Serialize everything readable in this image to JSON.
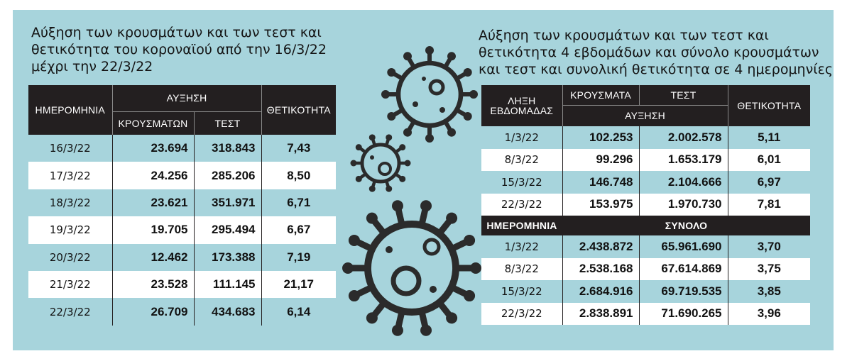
{
  "left": {
    "title_lines": [
      "Αύξηση των κρουσμάτων και των τεστ και",
      "θετικότητα του κοροναϊού από την 16/3/22",
      "μέχρι την 22/3/22"
    ],
    "headers": {
      "date": "ΗΜΕΡΟΜΗΝΙΑ",
      "increase": "ΑΥΞΗΣΗ",
      "cases": "ΚΡΟΥΣΜΑΤΩΝ",
      "tests": "ΤΕΣΤ",
      "positivity": "ΘΕΤΙΚΟΤΗΤΑ"
    },
    "rows": [
      {
        "date": "16/3/22",
        "cases": "23.694",
        "tests": "318.843",
        "positivity": "7,43"
      },
      {
        "date": "17/3/22",
        "cases": "24.256",
        "tests": "285.206",
        "positivity": "8,50"
      },
      {
        "date": "18/3/22",
        "cases": "23.621",
        "tests": "351.971",
        "positivity": "6,71"
      },
      {
        "date": "19/3/22",
        "cases": "19.705",
        "tests": "295.494",
        "positivity": "6,67"
      },
      {
        "date": "20/3/22",
        "cases": "12.462",
        "tests": "173.388",
        "positivity": "7,19"
      },
      {
        "date": "21/3/22",
        "cases": "23.528",
        "tests": "111.145",
        "positivity": "21,17"
      },
      {
        "date": "22/3/22",
        "cases": "26.709",
        "tests": "434.683",
        "positivity": "6,14"
      }
    ]
  },
  "right": {
    "title_lines": [
      "Αύξηση των κρουσμάτων και των τεστ και",
      "θετικότητα 4 εβδομάδων και σύνολο κρουσμάτων",
      "και τεστ και συνολική θετικότητα σε 4 ημερομηνίες"
    ],
    "headers": {
      "week_end_1": "ΛΗΞΗ",
      "week_end_2": "ΕΒΔΟΜΑΔΑΣ",
      "cases": "ΚΡΟΥΣΜΑΤΑ",
      "tests": "ΤΕΣΤ",
      "increase": "ΑΥΞΗΣΗ",
      "positivity": "ΘΕΤΙΚΟΤΗΤΑ",
      "date": "ΗΜΕΡΟΜΗΝΙΑ",
      "total": "ΣΥΝΟΛΟ"
    },
    "weekly": [
      {
        "date": "1/3/22",
        "cases": "102.253",
        "tests": "2.002.578",
        "positivity": "5,11"
      },
      {
        "date": "8/3/22",
        "cases": "99.296",
        "tests": "1.653.179",
        "positivity": "6,01"
      },
      {
        "date": "15/3/22",
        "cases": "146.748",
        "tests": "2.104.666",
        "positivity": "6,97"
      },
      {
        "date": "22/3/22",
        "cases": "153.975",
        "tests": "1.970.730",
        "positivity": "7,81"
      }
    ],
    "totals": [
      {
        "date": "1/3/22",
        "cases": "2.438.872",
        "tests": "65.961.690",
        "positivity": "3,70"
      },
      {
        "date": "8/3/22",
        "cases": "2.538.168",
        "tests": "67.614.869",
        "positivity": "3,75"
      },
      {
        "date": "15/3/22",
        "cases": "2.684.916",
        "tests": "69.719.535",
        "positivity": "3,85"
      },
      {
        "date": "22/3/22",
        "cases": "2.838.891",
        "tests": "71.690.265",
        "positivity": "3,96"
      }
    ]
  },
  "decorations": [
    "virus-icon",
    "virus-icon",
    "virus-icon"
  ]
}
